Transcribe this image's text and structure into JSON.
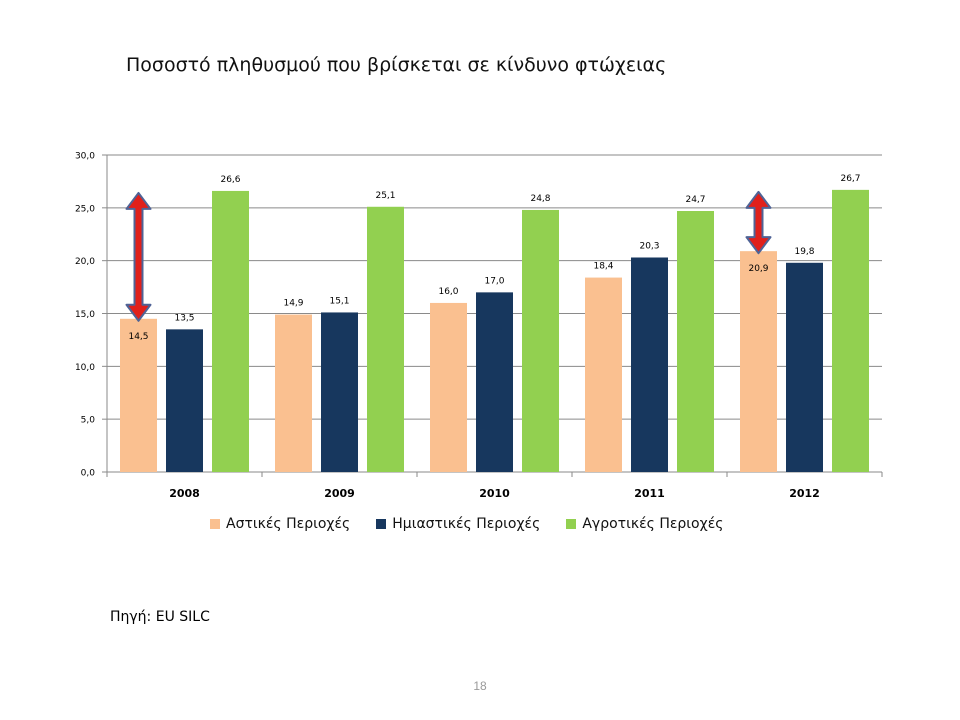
{
  "title": "Ποσοστό πληθυσμού που βρίσκεται σε κίνδυνο φτώχειας",
  "source": "Πηγή: EU SILC",
  "page_number": "18",
  "chart_data": {
    "type": "bar",
    "categories": [
      "2008",
      "2009",
      "2010",
      "2011",
      "2012"
    ],
    "series": [
      {
        "name": "Αστικές Περιοχές",
        "color": "#FAC090",
        "values": [
          14.5,
          14.9,
          16.0,
          18.4,
          20.9
        ],
        "labels": [
          "14,5",
          "14,9",
          "16,0",
          "18,4",
          "20,9"
        ]
      },
      {
        "name": "Ημιαστικές Περιοχές",
        "color": "#17375E",
        "values": [
          13.5,
          15.1,
          17.0,
          20.3,
          19.8
        ],
        "labels": [
          "13,5",
          "15,1",
          "17,0",
          "20,3",
          "19,8"
        ]
      },
      {
        "name": "Αγροτικές Περιοχές",
        "color": "#92D050",
        "values": [
          26.6,
          25.1,
          24.8,
          24.7,
          26.7
        ],
        "labels": [
          "26,6",
          "25,1",
          "24,8",
          "24,7",
          "26,7"
        ]
      }
    ],
    "yticks": [
      "0,0",
      "5,0",
      "10,0",
      "15,0",
      "20,0",
      "25,0",
      "30,0"
    ],
    "ylim": [
      0,
      30
    ],
    "grid": true,
    "legend_position": "bottom",
    "annotations": [
      {
        "type": "double-arrow",
        "category": "2008",
        "from": 14.5,
        "to": 26.6,
        "color": "#E0201B",
        "outline": "#4F6396"
      },
      {
        "type": "double-arrow",
        "category": "2012",
        "from": 20.9,
        "to": 26.7,
        "color": "#E0201B",
        "outline": "#4F6396"
      }
    ]
  }
}
